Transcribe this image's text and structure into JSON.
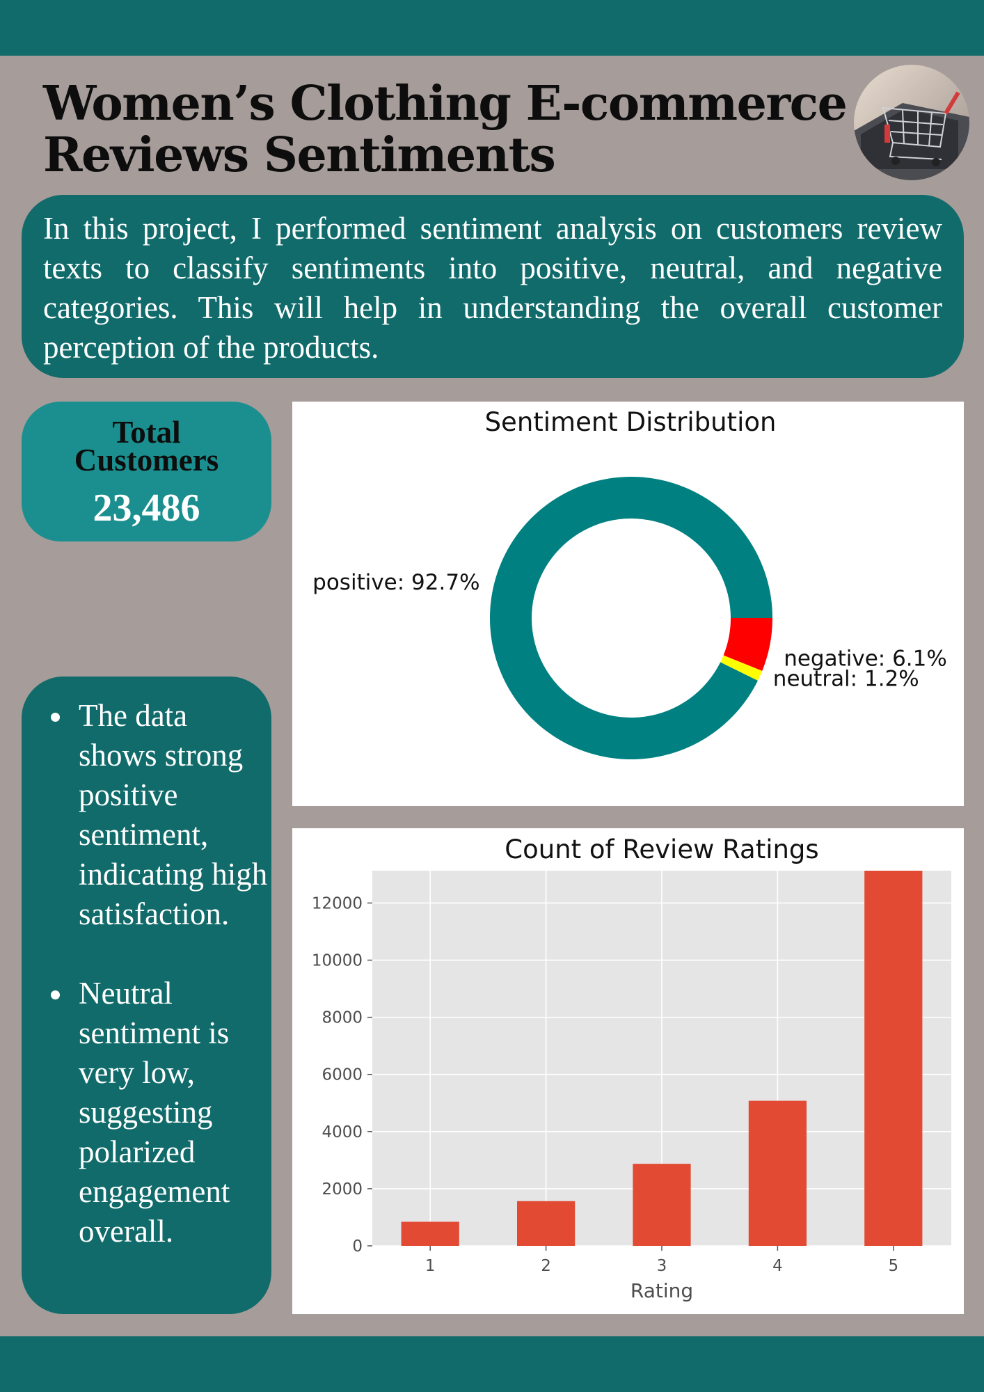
{
  "header": {
    "title_line1": "Women’s Clothing E-commerce",
    "title_line2": "Reviews Sentiments",
    "image_icon": "shopping-cart-photo"
  },
  "intro": {
    "text": "In this project, I performed sentiment analysis on customers review texts to classify sentiments into positive, neutral, and negative categories. This will help in understanding the overall customer perception of the products."
  },
  "kpi": {
    "label_line1": "Total",
    "label_line2": "Customers",
    "value": "23,486"
  },
  "notes": {
    "items": [
      "The data shows strong positive sentiment, indicating high satisfaction.",
      "Neutral sentiment is very low, suggesting polarized engagement overall."
    ]
  },
  "colors": {
    "band": "#116b6b",
    "background": "#a69c99",
    "kpi": "#1b8f8f",
    "positive": "#008080",
    "neutral": "#ffff00",
    "negative": "#ff0000",
    "bar": "#e24a33",
    "plot_bg": "#e5e5e5"
  },
  "chart_data": [
    {
      "type": "pie",
      "style": "donut",
      "title": "Sentiment Distribution",
      "slices": [
        {
          "name": "positive",
          "value": 92.7,
          "label": "positive: 92.7%",
          "color": "#008080"
        },
        {
          "name": "neutral",
          "value": 1.2,
          "label": "neutral: 1.2%",
          "color": "#ffff00"
        },
        {
          "name": "negative",
          "value": 6.1,
          "label": "negative: 6.1%",
          "color": "#ff0000"
        }
      ]
    },
    {
      "type": "bar",
      "title": "Count of Review Ratings",
      "xlabel": "Rating",
      "ylabel": "",
      "categories": [
        "1",
        "2",
        "3",
        "4",
        "5"
      ],
      "values": [
        842,
        1565,
        2871,
        5077,
        13131
      ],
      "ylim": [
        0,
        13131
      ],
      "yticks": [
        0,
        2000,
        4000,
        6000,
        8000,
        10000,
        12000
      ],
      "grid": true,
      "color": "#e24a33"
    }
  ]
}
